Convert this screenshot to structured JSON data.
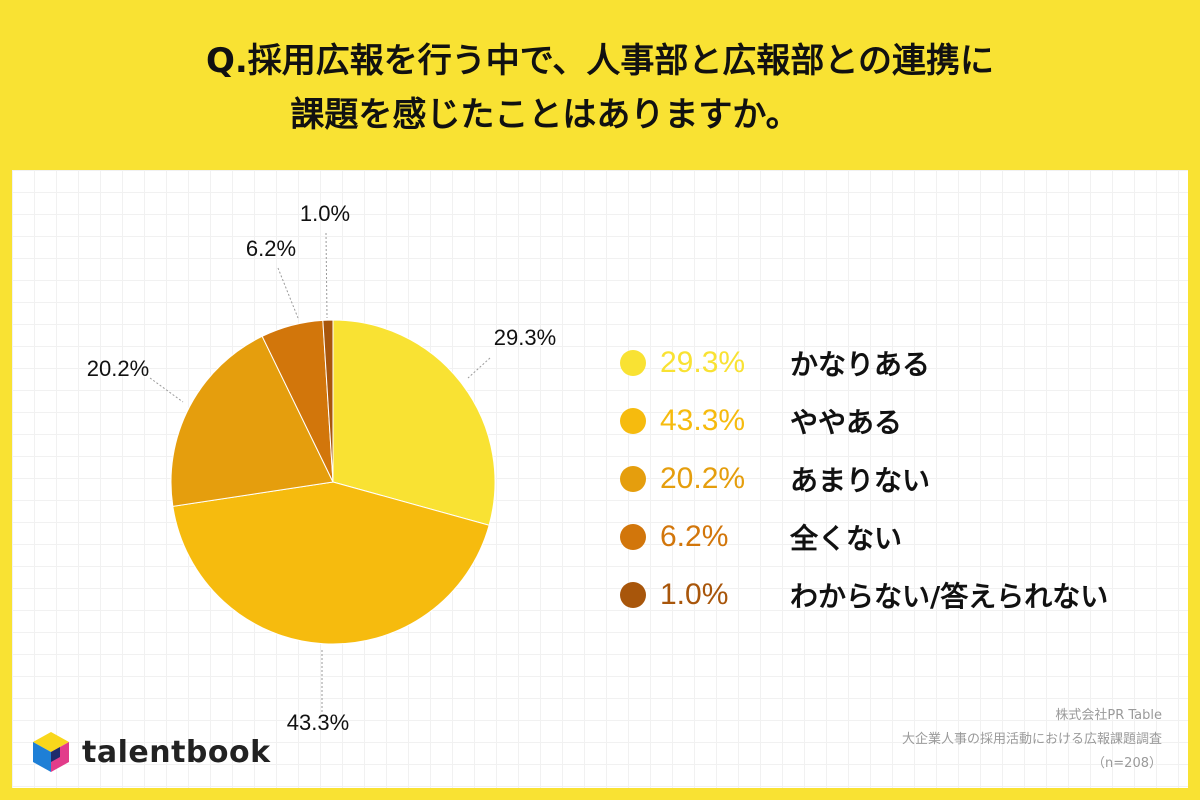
{
  "title": {
    "line1": "Q.採用広報を行う中で、人事部と広報部との連携に",
    "line2": "課題を感じたことはありますか。"
  },
  "chart_data": {
    "type": "pie",
    "title": "Q.採用広報を行う中で、人事部と広報部との連携に課題を感じたことはありますか。",
    "slices": [
      {
        "label": "かなりある",
        "value": 29.3,
        "display": "29.3%",
        "color": "#F9E233"
      },
      {
        "label": "ややある",
        "value": 43.3,
        "display": "43.3%",
        "color": "#F6BB0E"
      },
      {
        "label": "あまりない",
        "value": 20.2,
        "display": "20.2%",
        "color": "#E59E0D"
      },
      {
        "label": "全くない",
        "value": 6.2,
        "display": "6.2%",
        "color": "#D2760B"
      },
      {
        "label": "わからない/答えられない",
        "value": 1.0,
        "display": "1.0%",
        "color": "#A8560B"
      }
    ],
    "legend_position": "right"
  },
  "logo": {
    "text": "talentbook",
    "colors": {
      "yellow": "#F9D71C",
      "blue": "#1E7FD6",
      "pink": "#E23C8A",
      "navy": "#1F2B6B"
    }
  },
  "source": {
    "company": "株式会社PR Table",
    "survey": "大企業人事の採用活動における広報課題調査",
    "n": "（n=208）"
  },
  "colors": {
    "background": "#F9E233",
    "panel": "#FFFFFF",
    "grid": "#F1F1F1"
  }
}
